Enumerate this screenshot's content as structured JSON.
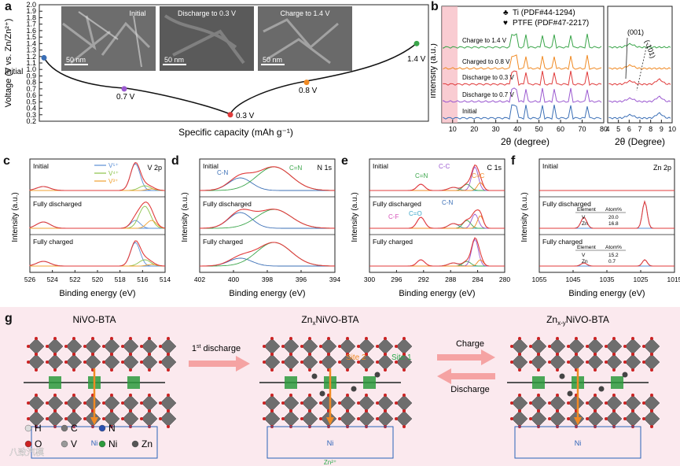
{
  "figure": {
    "panel_labels": [
      "a",
      "b",
      "c",
      "d",
      "e",
      "f",
      "g"
    ]
  },
  "panel_a": {
    "ylabel": "Voltage (V vs. Zn/Zn²⁺)",
    "xlabel": "Specific capacity (mAh g⁻¹)",
    "yticks": [
      "0.2",
      "0.3",
      "0.4",
      "0.5",
      "0.6",
      "0.7",
      "0.8",
      "0.9",
      "1.0",
      "1.1",
      "1.2",
      "1.3",
      "1.4",
      "1.5",
      "1.6",
      "1.7",
      "1.8",
      "1.9",
      "2.0"
    ],
    "points": [
      {
        "label": "Initial",
        "v": 1.18,
        "color": "#3b6fb6"
      },
      {
        "label": "0.7 V",
        "v": 0.7,
        "color": "#9b59d0"
      },
      {
        "label": "0.3 V",
        "v": 0.3,
        "color": "#e03b3b"
      },
      {
        "label": "0.8 V",
        "v": 0.8,
        "color": "#f08a24"
      },
      {
        "label": "1.4 V",
        "v": 1.4,
        "color": "#3aa54a"
      }
    ],
    "insets": [
      {
        "title": "Initial",
        "scale": "50 nm"
      },
      {
        "title": "Discharge to 0.3 V",
        "scale": "50 nm"
      },
      {
        "title": "Charge to 1.4 V",
        "scale": "50 nm"
      }
    ]
  },
  "panel_b": {
    "ylabel": "Intensity (a.u.)",
    "xlabel_main": "2θ (degree)",
    "xlabel_zoom": "2θ (Degree)",
    "xticks_main": [
      "10",
      "20",
      "30",
      "40",
      "50",
      "60",
      "70",
      "80"
    ],
    "xticks_zoom": [
      "4",
      "5",
      "6",
      "7",
      "8",
      "9",
      "10"
    ],
    "legend": [
      {
        "symbol": "♣",
        "text": "Ti (PDF#44-1294)"
      },
      {
        "symbol": "♥",
        "text": "PTFE (PDF#47-2217)"
      }
    ],
    "curves": [
      {
        "label": "Charge to 1.4 V",
        "color": "#3aa54a"
      },
      {
        "label": "Charged to 0.8 V",
        "color": "#f08a24"
      },
      {
        "label": "Discharge to 0.3 V",
        "color": "#e03b3b"
      },
      {
        "label": "Discharge to 0.7 V",
        "color": "#9b59d0"
      },
      {
        "label": "Initial",
        "color": "#3b6fb6"
      }
    ],
    "zoom_annotations": [
      "(001)",
      "(-101)"
    ]
  },
  "panel_c": {
    "title": "V 2p",
    "ylabel": "Intensity (a.u.)",
    "xlabel": "Binding energy (eV)",
    "xticks": [
      "526",
      "524",
      "522",
      "520",
      "518",
      "516",
      "514"
    ],
    "states": [
      "Initial",
      "Fully discharged",
      "Fully charged"
    ],
    "legend": [
      {
        "text": "V⁵⁺",
        "color": "#5b8fd6"
      },
      {
        "text": "V⁴⁺",
        "color": "#8bc34a"
      },
      {
        "text": "V³⁺",
        "color": "#f0a030"
      }
    ]
  },
  "panel_d": {
    "title": "N 1s",
    "ylabel": "Intensity (a.u.)",
    "xlabel": "Binding energy (eV)",
    "xticks": [
      "402",
      "400",
      "398",
      "396",
      "394"
    ],
    "states": [
      "Initial",
      "Fully discharged",
      "Fully charged"
    ],
    "labels": [
      {
        "text": "C-N",
        "color": "#3b6fb6"
      },
      {
        "text": "C=N",
        "color": "#3aa54a"
      }
    ]
  },
  "panel_e": {
    "title": "C 1s",
    "ylabel": "Intensity (a.u.)",
    "xlabel": "Binding energy (eV)",
    "xticks": [
      "300",
      "296",
      "292",
      "288",
      "284",
      "280"
    ],
    "states": [
      "Initial",
      "Fully discharged",
      "Fully charged"
    ],
    "labels": [
      {
        "text": "C-C",
        "color": "#9b59d0"
      },
      {
        "text": "C=N",
        "color": "#3aa54a"
      },
      {
        "text": "C=C",
        "color": "#f08a24"
      },
      {
        "text": "C-F",
        "color": "#d64fb8"
      },
      {
        "text": "C=O",
        "color": "#3aa5c8"
      },
      {
        "text": "C-N",
        "color": "#3b6fb6"
      }
    ]
  },
  "panel_f": {
    "title": "Zn 2p",
    "ylabel": "Intensity (a.u.)",
    "xlabel": "Binding energy (eV)",
    "xticks": [
      "1055",
      "1045",
      "1035",
      "1025",
      "1015"
    ],
    "states": [
      "Initial",
      "Fully discharged",
      "Fully charged"
    ],
    "table_header": [
      "Element",
      "Atom%"
    ],
    "table_discharged": [
      [
        "V",
        "20.0"
      ],
      [
        "Zn",
        "16.8"
      ]
    ],
    "table_charged": [
      [
        "V",
        "15.2"
      ],
      [
        "Zn",
        "0.7"
      ]
    ]
  },
  "panel_g": {
    "titles": [
      "NiVO-BTA",
      "Zn",
      "NiVO-BTA",
      "Zn",
      "NiVO-BTA"
    ],
    "title_subs": [
      "x",
      "x-y"
    ],
    "arrow1_label": "1",
    "arrow1_sup": "st",
    "arrow1_rest": " discharge",
    "charge_label": "Charge",
    "discharge_label": "Discharge",
    "site1": "Site 1",
    "site2": "Site 2",
    "zn_ion": "Zn²⁺",
    "legend": [
      {
        "symbol": "H",
        "color": "#dddddd"
      },
      {
        "symbol": "C",
        "color": "#777777"
      },
      {
        "symbol": "N",
        "color": "#2a4fb0"
      },
      {
        "symbol": "O",
        "color": "#cc2222"
      },
      {
        "symbol": "V",
        "color": "#999999"
      },
      {
        "symbol": "Ni",
        "color": "#2c9a3c"
      },
      {
        "symbol": "Zn",
        "color": "#555555"
      }
    ],
    "watermark": "八致汽模"
  }
}
